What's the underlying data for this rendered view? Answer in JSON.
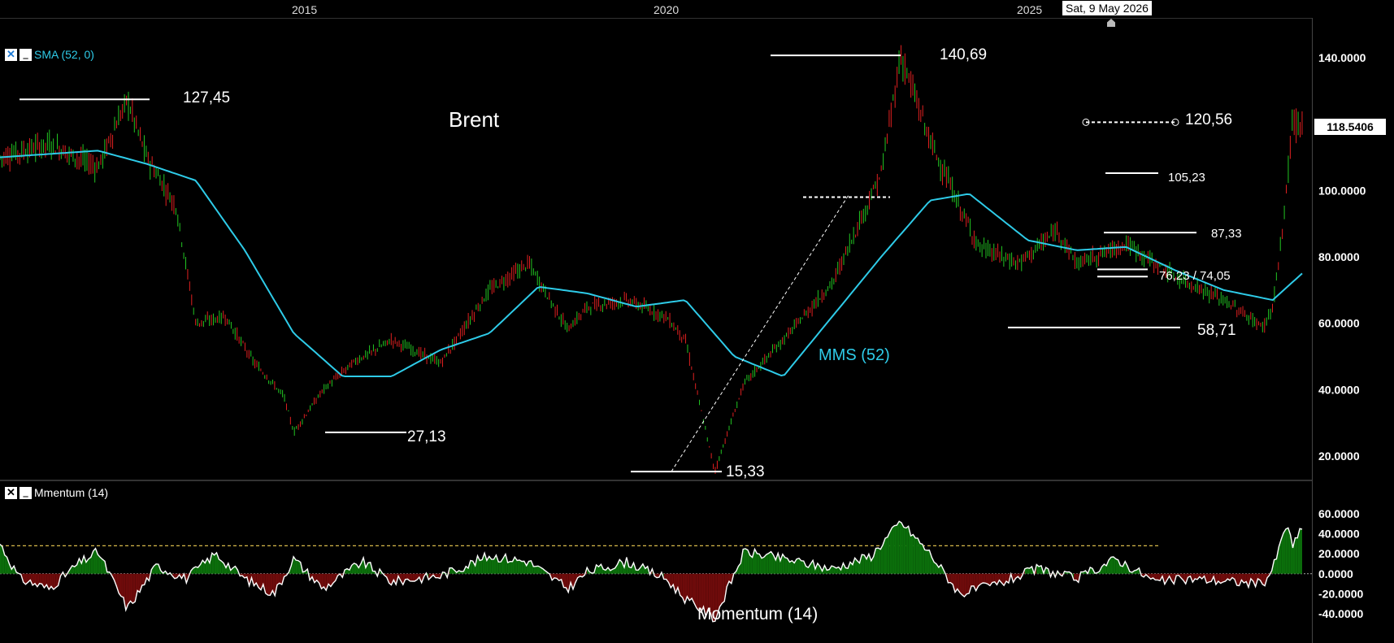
{
  "top_axis": {
    "years": [
      "2015",
      "2020",
      "2025"
    ],
    "cursor_date": "Sat, 9 May 2026"
  },
  "legends": {
    "main": {
      "close_label": "✕",
      "min_label": "‗",
      "text": "SMA (52, 0)"
    },
    "momentum": {
      "close_label": "✕",
      "min_label": "‗",
      "text": "Mmentum (14)"
    }
  },
  "last_price_tag": "118.5406",
  "annotations": {
    "title": "Brent",
    "sma_label": "MMS (52)",
    "momentum_label": "Momentum (14)",
    "levels": [
      "127,45",
      "27,13",
      "15,33",
      "140,69",
      "120,56",
      "105,23",
      "87,33",
      "76,23 / 74,05",
      "58,71"
    ]
  },
  "colors": {
    "up": "#22c522",
    "down": "#e02020",
    "sma": "#2ecbe8",
    "momentum_pos": "#0b6e0b",
    "momentum_neg": "#6e0b0b",
    "threshold": "#d6b84a"
  },
  "chart_data": [
    {
      "type": "line",
      "title": "Brent",
      "x_axis": {
        "tick_labels": [
          "2015",
          "2020",
          "2025"
        ],
        "range": [
          2013.0,
          2026.4
        ]
      },
      "y_axis": {
        "tick_labels": [
          "140.0000",
          "120.0000",
          "100.0000",
          "80.0000",
          "60.0000",
          "40.0000",
          "20.0000"
        ],
        "ticks": [
          140,
          120,
          100,
          80,
          60,
          40,
          20
        ],
        "range": [
          15,
          148
        ]
      },
      "series": [
        {
          "name": "Brent",
          "x": [
            2013.0,
            2013.5,
            2014.0,
            2014.3,
            2014.5,
            2014.8,
            2015.0,
            2015.3,
            2015.6,
            2015.9,
            2016.0,
            2016.3,
            2016.6,
            2017.0,
            2017.5,
            2018.0,
            2018.4,
            2018.8,
            2019.0,
            2019.4,
            2019.8,
            2020.0,
            2020.3,
            2020.6,
            2021.0,
            2021.5,
            2022.0,
            2022.2,
            2022.5,
            2022.8,
            2023.0,
            2023.4,
            2023.8,
            2024.0,
            2024.5,
            2025.0,
            2025.5,
            2025.9,
            2026.0,
            2026.1,
            2026.2,
            2026.3
          ],
          "values": [
            110,
            114,
            107,
            127.45,
            110,
            95,
            60,
            62,
            48,
            38,
            27.13,
            40,
            48,
            55,
            48,
            70,
            78,
            58,
            65,
            67,
            62,
            55,
            15.33,
            42,
            55,
            72,
            105,
            140.69,
            115,
            95,
            83,
            78,
            88,
            78,
            84,
            74,
            67,
            58.71,
            65,
            87.33,
            120.56,
            118.54
          ]
        },
        {
          "name": "MMS (52)",
          "x": [
            2013.0,
            2014.0,
            2014.5,
            2015.0,
            2015.5,
            2016.0,
            2016.5,
            2017.0,
            2017.5,
            2018.0,
            2018.5,
            2019.0,
            2019.5,
            2020.0,
            2020.5,
            2021.0,
            2021.5,
            2022.0,
            2022.5,
            2022.9,
            2023.5,
            2024.0,
            2024.5,
            2025.0,
            2025.5,
            2026.0,
            2026.3
          ],
          "values": [
            110,
            112,
            108,
            103,
            82,
            57,
            44,
            44,
            52,
            57,
            71,
            69,
            65,
            67,
            50,
            44,
            62,
            80,
            97,
            99,
            85,
            82,
            83,
            76,
            70,
            67,
            75
          ]
        }
      ]
    },
    {
      "type": "area",
      "title": "Momentum (14)",
      "x_axis": {
        "range": [
          2013.0,
          2026.4
        ]
      },
      "y_axis": {
        "tick_labels": [
          "60.0000",
          "40.0000",
          "20.0000",
          "0.0000",
          "-20.0000",
          "-40.0000"
        ],
        "ticks": [
          60,
          40,
          20,
          0,
          -20,
          -40
        ],
        "range": [
          -48,
          60
        ]
      },
      "threshold": 28,
      "series": [
        {
          "name": "Momentum (14)",
          "x": [
            2013.0,
            2013.2,
            2013.5,
            2013.8,
            2014.0,
            2014.3,
            2014.6,
            2014.9,
            2015.2,
            2015.5,
            2015.8,
            2016.0,
            2016.3,
            2016.7,
            2017.0,
            2017.5,
            2018.0,
            2018.4,
            2018.8,
            2019.0,
            2019.4,
            2019.8,
            2020.0,
            2020.3,
            2020.6,
            2021.0,
            2021.5,
            2021.9,
            2022.2,
            2022.5,
            2022.8,
            2023.2,
            2023.6,
            2024.0,
            2024.4,
            2024.8,
            2025.2,
            2025.6,
            2025.9,
            2026.0,
            2026.15,
            2026.2,
            2026.3
          ],
          "values": [
            30,
            -5,
            -15,
            10,
            22,
            -35,
            8,
            -5,
            20,
            -5,
            -20,
            15,
            -15,
            12,
            -8,
            -2,
            18,
            12,
            -15,
            2,
            12,
            -5,
            -25,
            -45,
            22,
            15,
            5,
            18,
            52,
            20,
            -20,
            -10,
            5,
            -5,
            15,
            -8,
            -5,
            -8,
            -10,
            5,
            52,
            25,
            48
          ]
        }
      ]
    }
  ]
}
